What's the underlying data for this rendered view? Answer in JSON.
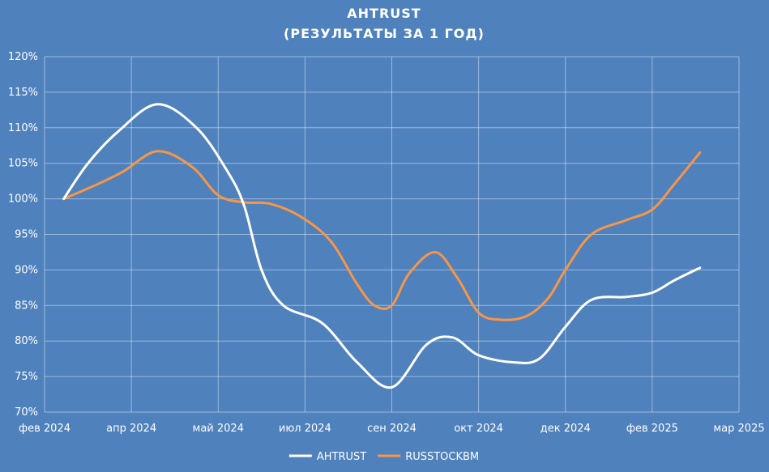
{
  "chart_data": {
    "type": "line",
    "title": "AHTRUST",
    "subtitle": "(РЕЗУЛЬТАТЫ ЗА 1 ГОД)",
    "xlabel": "",
    "ylabel": "",
    "grid": true,
    "legend_position": "bottom",
    "ylim": [
      70,
      120
    ],
    "y_ticks": [
      "70%",
      "75%",
      "80%",
      "85%",
      "90%",
      "95%",
      "100%",
      "105%",
      "110%",
      "115%",
      "120%"
    ],
    "x_ticks": [
      "фев 2024",
      "апр 2024",
      "май 2024",
      "июл 2024",
      "сен 2024",
      "окт 2024",
      "дек 2024",
      "фев 2025",
      "мар 2025"
    ],
    "x_range": [
      0,
      8
    ],
    "series": [
      {
        "name": "AHTRUST",
        "color": "#ffffff",
        "x": [
          0.22,
          0.5,
          0.85,
          1.3,
          1.75,
          2.1,
          2.3,
          2.5,
          2.75,
          3.2,
          3.6,
          4.0,
          4.4,
          4.7,
          5.0,
          5.4,
          5.7,
          6.0,
          6.3,
          6.7,
          7.0,
          7.25,
          7.55
        ],
        "values": [
          100,
          105,
          109.5,
          113.3,
          110,
          104,
          99,
          90,
          85,
          82.5,
          77,
          73.5,
          79.5,
          80.5,
          78,
          77,
          77.5,
          82,
          85.8,
          86.2,
          86.8,
          88.5,
          90.3
        ]
      },
      {
        "name": "RUSSTOCKBM",
        "color": "#f79646",
        "x": [
          0.22,
          0.6,
          0.9,
          1.3,
          1.7,
          2.0,
          2.3,
          2.6,
          2.95,
          3.3,
          3.6,
          3.8,
          4.0,
          4.2,
          4.5,
          4.75,
          5.0,
          5.25,
          5.55,
          5.8,
          6.0,
          6.3,
          6.7,
          7.0,
          7.25,
          7.55
        ],
        "values": [
          100,
          102,
          103.8,
          106.7,
          104.5,
          100.5,
          99.5,
          99.3,
          97.5,
          94,
          88,
          85,
          85,
          89.5,
          92.5,
          89,
          84,
          83,
          83.5,
          86,
          90,
          95,
          97,
          98.5,
          102,
          106.5
        ]
      }
    ]
  }
}
